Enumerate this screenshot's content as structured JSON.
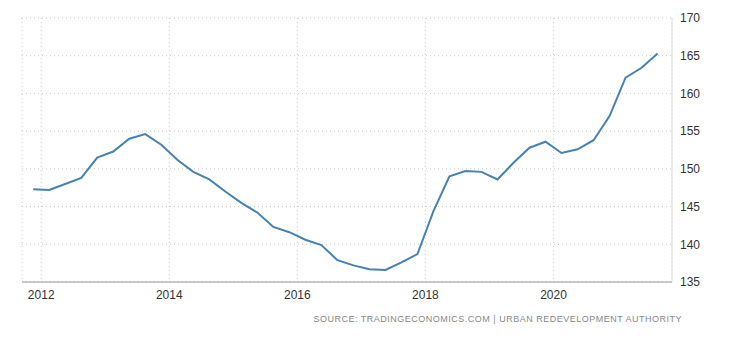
{
  "chart_data": {
    "type": "line",
    "source": "SOURCE: TRADINGECONOMICS.COM | URBAN REDEVELOPMENT AUTHORITY",
    "x": [
      2011.875,
      2012.125,
      2012.375,
      2012.625,
      2012.875,
      2013.125,
      2013.375,
      2013.625,
      2013.875,
      2014.125,
      2014.375,
      2014.625,
      2014.875,
      2015.125,
      2015.375,
      2015.625,
      2015.875,
      2016.125,
      2016.375,
      2016.625,
      2016.875,
      2017.125,
      2017.375,
      2017.625,
      2017.875,
      2018.125,
      2018.375,
      2018.625,
      2018.875,
      2019.125,
      2019.375,
      2019.625,
      2019.875,
      2020.125,
      2020.375,
      2020.625,
      2020.875,
      2021.125,
      2021.375,
      2021.625
    ],
    "values": [
      147.3,
      147.2,
      148.0,
      148.8,
      151.5,
      152.3,
      154.0,
      154.6,
      153.2,
      151.2,
      149.6,
      148.6,
      147.0,
      145.5,
      144.2,
      142.3,
      141.6,
      140.6,
      139.9,
      137.9,
      137.2,
      136.7,
      136.6,
      137.6,
      138.7,
      144.4,
      149.0,
      149.7,
      149.6,
      148.6,
      150.8,
      152.8,
      153.6,
      152.1,
      152.6,
      153.8,
      157.0,
      162.1,
      163.4,
      165.3
    ],
    "color": "#4682b4",
    "xlim": [
      2011.7,
      2021.85
    ],
    "xticks": [
      2012,
      2014,
      2016,
      2018,
      2020
    ],
    "ylim": [
      135,
      170
    ],
    "yticks": [
      135,
      140,
      145,
      150,
      155,
      160,
      165,
      170
    ],
    "grid": true
  }
}
